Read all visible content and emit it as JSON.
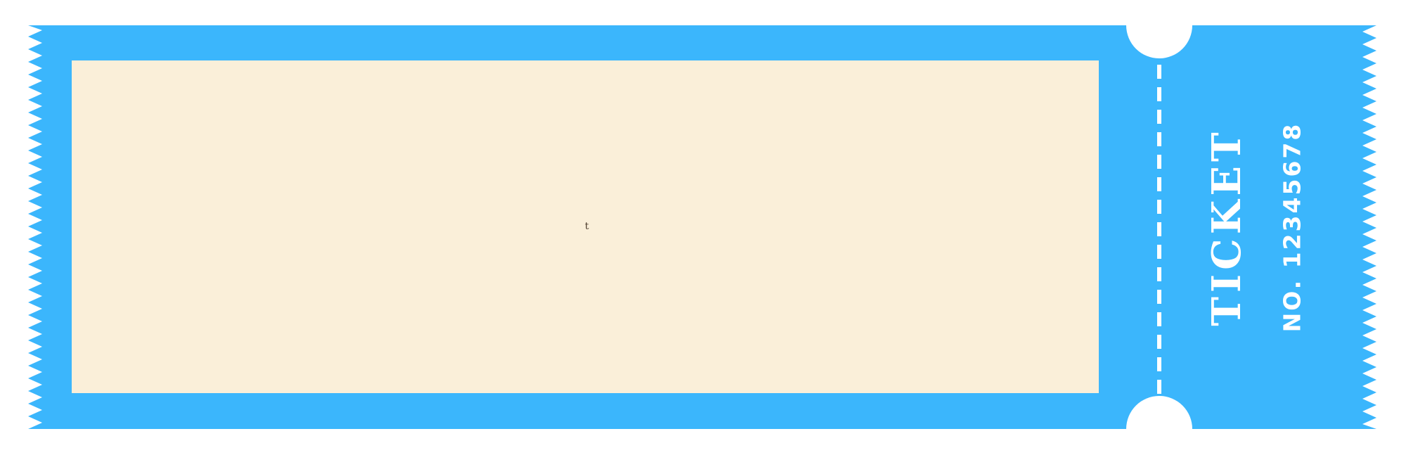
{
  "ticket": {
    "main_area_text": "t",
    "stub_title": "TICKET",
    "stub_number": "NO. 12345678"
  },
  "colors": {
    "ticket_blue": "#3bb6fc",
    "panel_cream": "#faefd9",
    "stub_text": "#ffffff",
    "background": "#ffffff"
  }
}
